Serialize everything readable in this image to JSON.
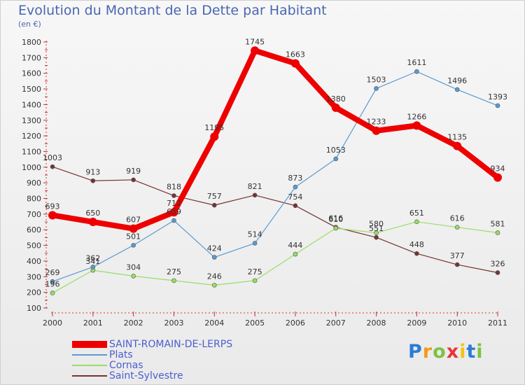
{
  "header": {
    "title": "Evolution du Montant de la Dette par Habitant",
    "unit": "(en €)"
  },
  "brand": {
    "logo_text": "Proxiti"
  },
  "chart_data": {
    "type": "line",
    "title": "Evolution du Montant de la Dette par Habitant",
    "subtitle": "(en €)",
    "xlabel": "",
    "ylabel": "",
    "categories": [
      "2000",
      "2001",
      "2002",
      "2003",
      "2004",
      "2005",
      "2006",
      "2007",
      "2008",
      "2009",
      "2010",
      "2011"
    ],
    "ylim": [
      100,
      1800
    ],
    "yticks": [
      100,
      200,
      300,
      400,
      500,
      600,
      700,
      800,
      900,
      1000,
      1100,
      1200,
      1300,
      1400,
      1500,
      1600,
      1700,
      1800
    ],
    "grid": false,
    "legend_position": "bottom-left",
    "series": [
      {
        "name": "SAINT-ROMAIN-DE-LERPS",
        "color": "#ee0000",
        "values": [
          693,
          650,
          607,
          712,
          1195,
          1745,
          1663,
          1380,
          1233,
          1266,
          1135,
          934
        ]
      },
      {
        "name": "Plats",
        "color": "#5a9ad0",
        "values": [
          269,
          362,
          501,
          659,
          424,
          514,
          873,
          1053,
          1503,
          1611,
          1496,
          1393
        ]
      },
      {
        "name": "Cornas",
        "color": "#99dd66",
        "values": [
          196,
          341,
          304,
          275,
          246,
          275,
          444,
          610,
          580,
          651,
          616,
          581
        ]
      },
      {
        "name": "Saint-Sylvestre",
        "color": "#773333",
        "values": [
          1003,
          913,
          919,
          818,
          757,
          821,
          754,
          616,
          551,
          448,
          377,
          326
        ]
      }
    ]
  }
}
